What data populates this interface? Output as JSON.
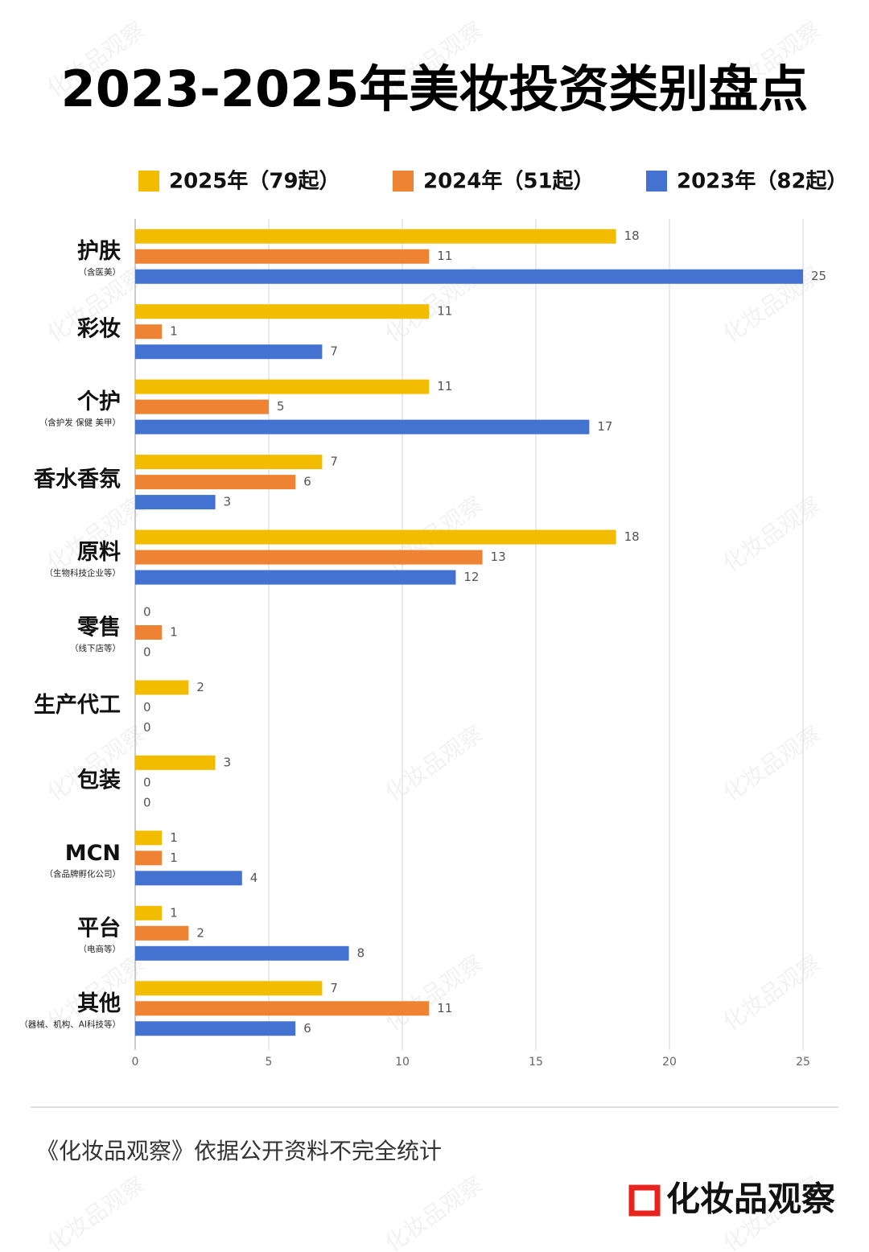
{
  "chart_data": {
    "type": "bar",
    "orientation": "horizontal",
    "title": "2023-2025年美妆投资类别盘点",
    "categories": [
      "护肤",
      "彩妆",
      "个护",
      "香水香氛",
      "原料",
      "零售",
      "生产代工",
      "包装",
      "MCN",
      "平台",
      "其他"
    ],
    "category_notes": [
      "（含医美）",
      null,
      "（含护发 保健 美甲）",
      null,
      "（生物科技企业等）",
      "（线下店等）",
      null,
      null,
      "（含品牌孵化公司）",
      "（电商等）",
      "（器械、机构、AI科技等）"
    ],
    "series": [
      {
        "name": "2025年（79起）",
        "color": "#f2bd00",
        "values": [
          18,
          11,
          11,
          7,
          18,
          0,
          2,
          3,
          1,
          1,
          7
        ]
      },
      {
        "name": "2024年（51起）",
        "color": "#ee8433",
        "values": [
          11,
          1,
          5,
          6,
          13,
          1,
          0,
          0,
          1,
          2,
          11
        ]
      },
      {
        "name": "2023年（82起）",
        "color": "#4472d0",
        "values": [
          25,
          7,
          17,
          3,
          12,
          0,
          0,
          0,
          4,
          8,
          6
        ]
      }
    ],
    "xlim": [
      0,
      26.3
    ],
    "xticks": [
      0,
      5,
      10,
      15,
      20,
      25
    ],
    "grid": true,
    "legend": "top"
  },
  "footer": {
    "source": "《化妆品观察》依据公开资料不完全统计",
    "logo": "化妆品观察"
  },
  "watermark": "化妆品观察"
}
